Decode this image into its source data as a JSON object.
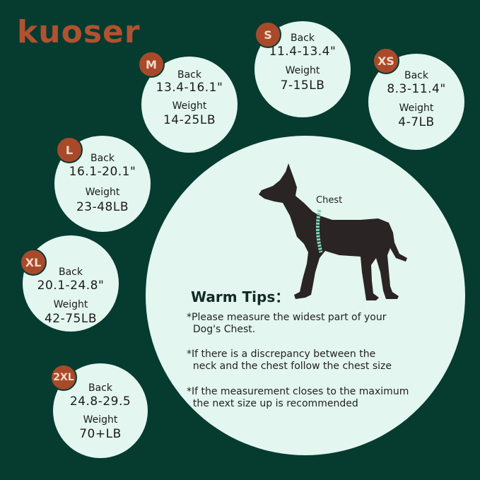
{
  "brand": {
    "logo_text": "kuoser",
    "color": "#b25130"
  },
  "colors": {
    "background": "#063b30",
    "circle": "#e3f6ef",
    "badge": "#a84a2a"
  },
  "sizes": [
    {
      "size": "M",
      "back_label": "Back",
      "back": "13.4-16.1\"",
      "weight_label": "Weight",
      "weight": "14-25LB"
    },
    {
      "size": "S",
      "back_label": "Back",
      "back": "11.4-13.4\"",
      "weight_label": "Weight",
      "weight": "7-15LB"
    },
    {
      "size": "XS",
      "back_label": "Back",
      "back": "8.3-11.4\"",
      "weight_label": "Weight",
      "weight": "4-7LB"
    },
    {
      "size": "L",
      "back_label": "Back",
      "back": "16.1-20.1\"",
      "weight_label": "Weight",
      "weight": "23-48LB"
    },
    {
      "size": "XL",
      "back_label": "Back",
      "back": "20.1-24.8\"",
      "weight_label": "Weight",
      "weight": "42-75LB"
    },
    {
      "size": "2XL",
      "back_label": "Back",
      "back": "24.8-29.5",
      "weight_label": "Weight",
      "weight": "70+LB"
    }
  ],
  "diagram": {
    "chest_label": "Chest",
    "icon": "dog-silhouette-icon"
  },
  "tips": {
    "title": "Warm Tips：",
    "items": [
      "*Please measure the widest part of your\n  Dog's Chest.",
      "*If there is a discrepancy between the\n  neck and the chest follow the chest size",
      "*If the measurement closes to the maximum\n  the next size up is recommended"
    ]
  }
}
